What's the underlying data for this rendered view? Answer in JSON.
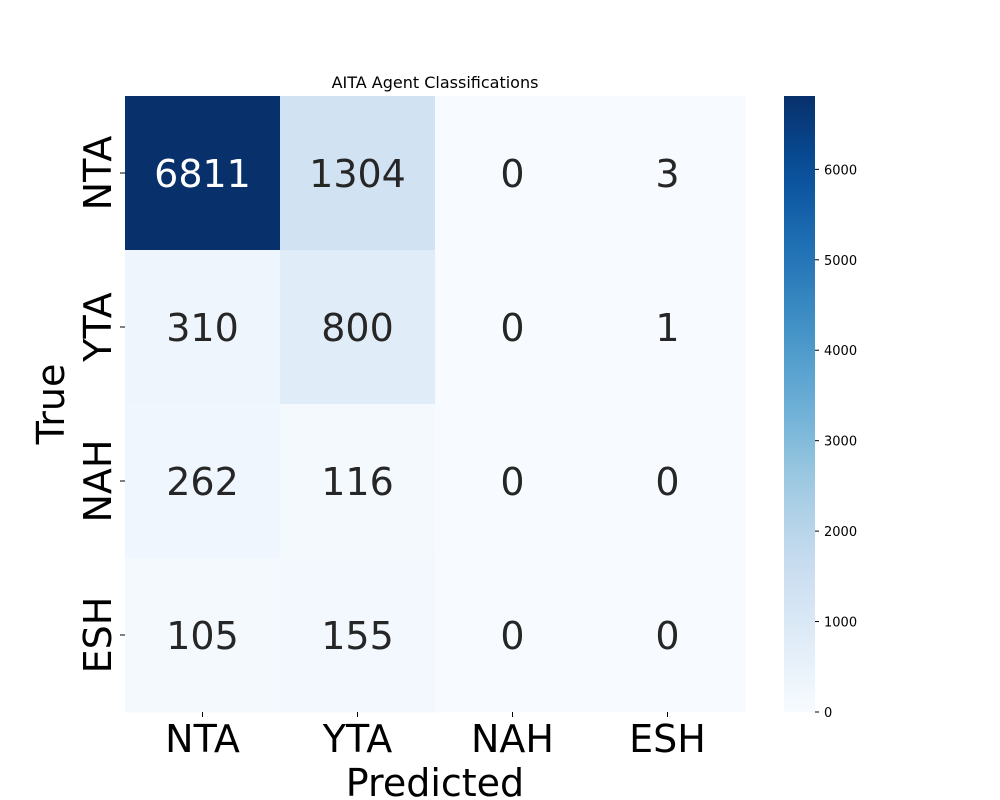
{
  "chart_data": {
    "type": "heatmap",
    "title": "AITA Agent Classifications",
    "xlabel": "Predicted",
    "ylabel": "True",
    "x_categories": [
      "NTA",
      "YTA",
      "NAH",
      "ESH"
    ],
    "y_categories": [
      "NTA",
      "YTA",
      "NAH",
      "ESH"
    ],
    "values": [
      [
        6811,
        1304,
        0,
        3
      ],
      [
        310,
        800,
        0,
        1
      ],
      [
        262,
        116,
        0,
        0
      ],
      [
        105,
        155,
        0,
        0
      ]
    ],
    "colormap": "Blues",
    "colorbar": {
      "min": 0,
      "max": 6811,
      "ticks": [
        0,
        1000,
        2000,
        3000,
        4000,
        5000,
        6000
      ]
    },
    "colors": {
      "low": "#f7fbff",
      "high": "#08306b",
      "dark_text": "#262626",
      "light_text": "#ffffff"
    }
  }
}
